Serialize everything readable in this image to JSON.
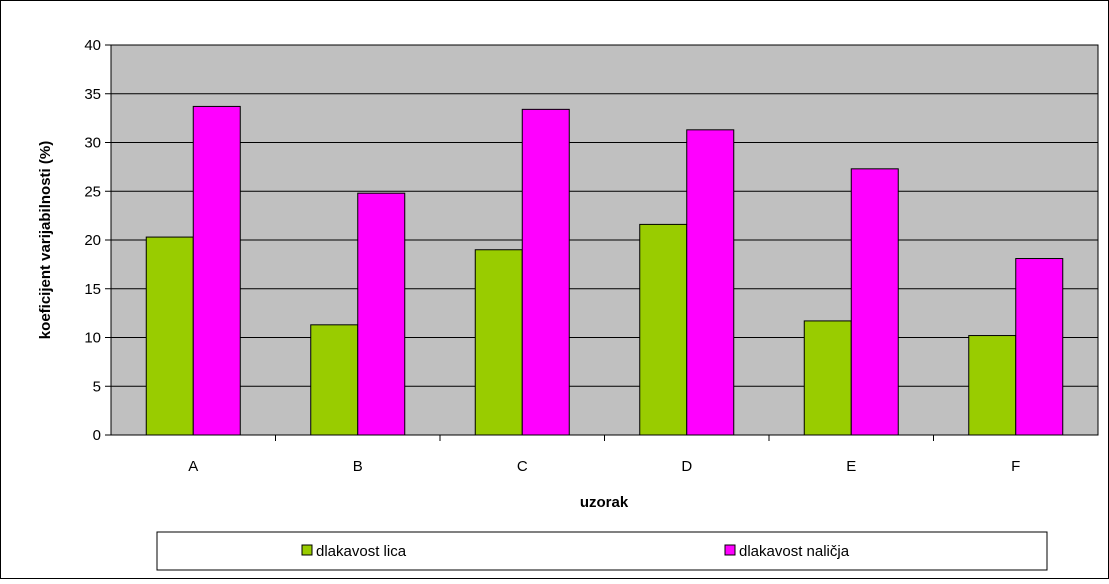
{
  "chart_data": {
    "type": "bar",
    "title": "",
    "xlabel": "uzorak",
    "ylabel": "koeficijent varijabilnosti (%)",
    "ylim": [
      0,
      40
    ],
    "yticks": [
      "0",
      "5",
      "10",
      "15",
      "20",
      "25",
      "30",
      "35",
      "40"
    ],
    "grid": true,
    "categories": [
      "A",
      "B",
      "C",
      "D",
      "E",
      "F"
    ],
    "series": [
      {
        "name": "dlakavost lica",
        "color": "#99CC00",
        "values": [
          20.3,
          11.3,
          19.0,
          21.6,
          11.7,
          10.2
        ]
      },
      {
        "name": "dlakavost naličja",
        "color": "#FF00FF",
        "values": [
          33.7,
          24.8,
          33.4,
          31.3,
          27.3,
          18.1
        ]
      }
    ],
    "legend_position": "bottom",
    "plot_background": "#C0C0C0"
  }
}
